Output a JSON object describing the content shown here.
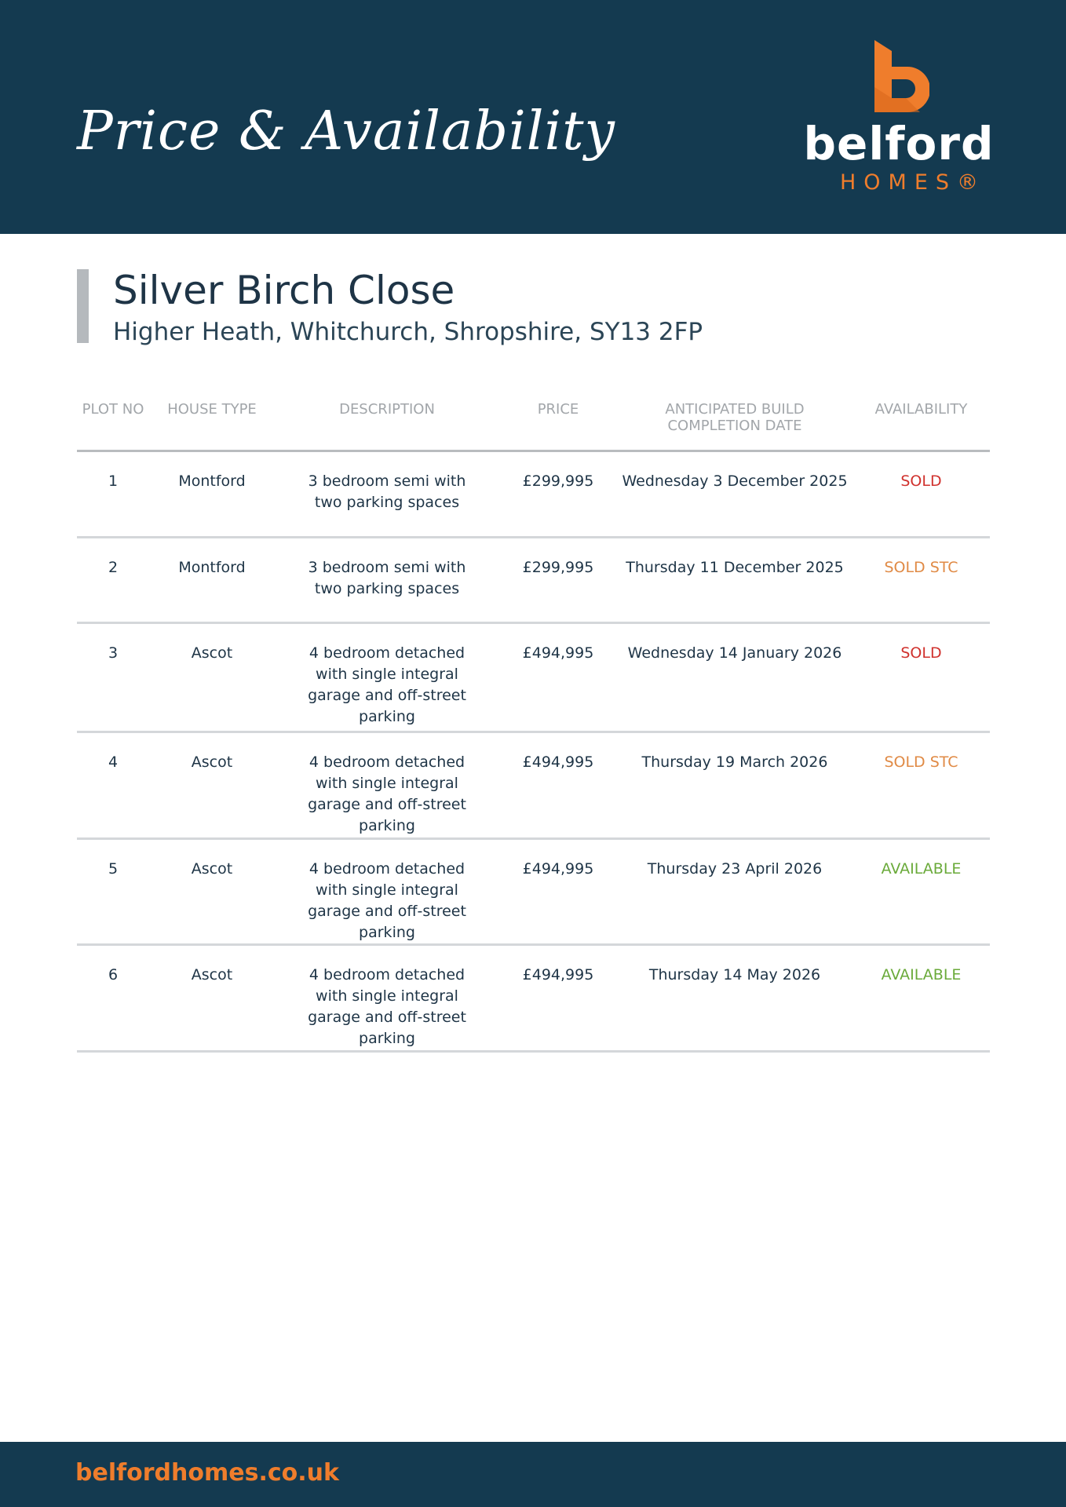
{
  "header": {
    "title": "Price & Availability"
  },
  "logo": {
    "word": "belford",
    "sub": "HOMES®",
    "colors": {
      "brand_orange": "#ef7d2c",
      "navy": "#143a50"
    }
  },
  "development": {
    "name": "Silver Birch Close",
    "address": "Higher Heath, Whitchurch, Shropshire, SY13 2FP"
  },
  "table": {
    "columns": [
      "PLOT NO",
      "HOUSE TYPE",
      "DESCRIPTION",
      "PRICE",
      "ANTICIPATED BUILD COMPLETION DATE",
      "AVAILABILITY"
    ],
    "rows": [
      {
        "plot": "1",
        "type": "Montford",
        "description": "3 bedroom semi with two parking spaces",
        "price": "£299,995",
        "date": "Wednesday 3 December 2025",
        "availability": "SOLD",
        "status": "sold"
      },
      {
        "plot": "2",
        "type": "Montford",
        "description": "3 bedroom semi with two parking spaces",
        "price": "£299,995",
        "date": "Thursday 11 December 2025",
        "availability": "SOLD STC",
        "status": "stc"
      },
      {
        "plot": "3",
        "type": "Ascot",
        "description": "4 bedroom detached with single integral garage and off-street parking",
        "price": "£494,995",
        "date": "Wednesday 14 January 2026",
        "availability": "SOLD",
        "status": "sold"
      },
      {
        "plot": "4",
        "type": "Ascot",
        "description": "4 bedroom detached with single integral garage and off-street parking",
        "price": "£494,995",
        "date": "Thursday 19 March 2026",
        "availability": "SOLD STC",
        "status": "stc"
      },
      {
        "plot": "5",
        "type": "Ascot",
        "description": "4 bedroom detached with single integral garage and off-street parking",
        "price": "£494,995",
        "date": "Thursday 23 April 2026",
        "availability": "AVAILABLE",
        "status": "avail"
      },
      {
        "plot": "6",
        "type": "Ascot",
        "description": "4 bedroom detached with single integral garage and off-street parking",
        "price": "£494,995",
        "date": "Thursday 14 May 2026",
        "availability": "AVAILABLE",
        "status": "avail"
      }
    ],
    "status_colors": {
      "sold": "#d0312d",
      "stc": "#e08a45",
      "avail": "#6aaa3a"
    }
  },
  "footer": {
    "url": "belfordhomes.co.uk"
  }
}
